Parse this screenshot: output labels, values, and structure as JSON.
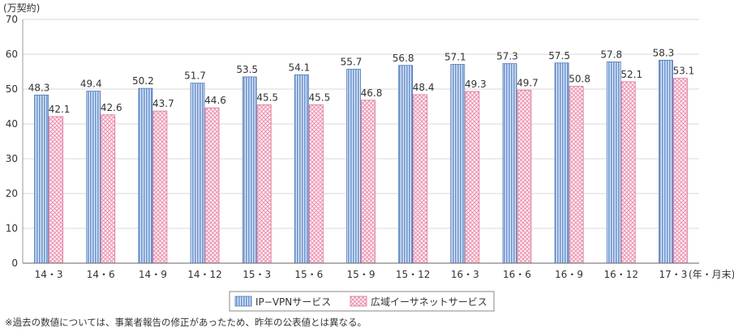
{
  "chart_data": {
    "type": "bar",
    "title": "",
    "ylabel": "(万契約)",
    "xlabel": "(年・月末)",
    "ylim": [
      0,
      70
    ],
    "yticks": [
      0,
      10,
      20,
      30,
      40,
      50,
      60,
      70
    ],
    "grid": "horizontal",
    "legend_position": "bottom-center",
    "categories": [
      "14・3",
      "14・6",
      "14・9",
      "14・12",
      "15・3",
      "15・6",
      "15・9",
      "15・12",
      "16・3",
      "16・6",
      "16・9",
      "16・12",
      "17・3"
    ],
    "series": [
      {
        "name": "IP−VPNサービス",
        "color": "#a9c4e8",
        "pattern": "vertical-stripes",
        "values": [
          48.3,
          49.4,
          50.2,
          51.7,
          53.5,
          54.1,
          55.7,
          56.8,
          57.1,
          57.3,
          57.5,
          57.8,
          58.3
        ]
      },
      {
        "name": "広域イーサネットサービス",
        "color": "#f5b3c8",
        "pattern": "crosshatch",
        "values": [
          42.1,
          42.6,
          43.7,
          44.6,
          45.5,
          45.5,
          46.8,
          48.4,
          49.3,
          49.7,
          50.8,
          52.1,
          53.1
        ]
      }
    ]
  },
  "footnote": "※過去の数値については、事業者報告の修正があったため、昨年の公表値とは異なる。"
}
